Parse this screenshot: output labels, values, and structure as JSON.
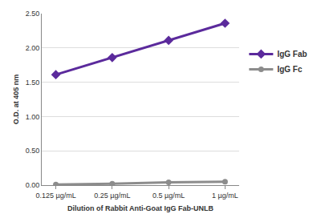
{
  "chart_data": {
    "type": "line",
    "x_label": "Dilution of Rabbit Anti-Goat IgG Fab-UNLB",
    "y_label": "O.D. at 405 nm",
    "categories": [
      "0.125 µg/mL",
      "0.25 µg/mL",
      "0.5 µg/mL",
      "1 µg/mL"
    ],
    "series": [
      {
        "name": "IgG Fab",
        "color": "#5b2a9c",
        "marker": "diamond",
        "values": [
          1.61,
          1.86,
          2.11,
          2.36
        ]
      },
      {
        "name": "IgG Fc",
        "color": "#8c8c8c",
        "marker": "circle",
        "values": [
          0.01,
          0.02,
          0.04,
          0.05
        ]
      }
    ],
    "ylim": [
      0,
      2.5
    ],
    "yticks": [
      {
        "value": 0,
        "label": "0.00"
      },
      {
        "value": 0.5,
        "label": "0.50"
      },
      {
        "value": 1,
        "label": "1.00"
      },
      {
        "value": 1.5,
        "label": "1.50"
      },
      {
        "value": 2,
        "label": "2.00"
      },
      {
        "value": 2.5,
        "label": "2.50"
      }
    ],
    "grid": true,
    "legend": "right"
  }
}
